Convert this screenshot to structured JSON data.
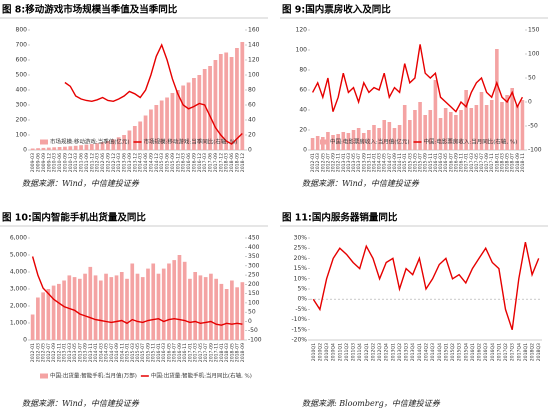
{
  "chart_data": [
    {
      "type": "bar",
      "title": "图 8:移动游戏市场规模当季值及当季同比",
      "source": "数据来源：Wind，中信建投证券",
      "legend": "lower center",
      "categories": [
        "2009-03",
        "2009-06",
        "2009-09",
        "2009-12",
        "2010-03",
        "2010-06",
        "2010-09",
        "2010-12",
        "2011-03",
        "2011-06",
        "2011-09",
        "2011-12",
        "2012-03",
        "2012-06",
        "2012-09",
        "2012-12",
        "2013-03",
        "2013-06",
        "2013-09",
        "2013-12",
        "2014-03",
        "2014-06",
        "2014-09",
        "2014-12",
        "2015-03",
        "2015-06",
        "2015-09",
        "2015-12",
        "2016-03",
        "2016-06",
        "2016-09",
        "2016-12",
        "2017-03",
        "2017-06",
        "2017-09",
        "2017-12",
        "2018-03",
        "2018-06",
        "2018-09",
        "2018-12"
      ],
      "ylim": [
        0,
        800
      ],
      "yticks": [
        0,
        100,
        200,
        300,
        400,
        500,
        600,
        700,
        800
      ],
      "y2lim": [
        0,
        160
      ],
      "y2ticks": [
        0,
        20,
        40,
        60,
        80,
        100,
        120,
        140,
        160
      ],
      "series": [
        {
          "name": "市场规模:移动游戏:当季值(亿元)",
          "type": "bar",
          "color": "#f4a3a3",
          "values": [
            10,
            12,
            14,
            16,
            18,
            20,
            22,
            25,
            28,
            32,
            36,
            40,
            45,
            52,
            60,
            70,
            85,
            100,
            130,
            160,
            190,
            230,
            270,
            300,
            330,
            350,
            380,
            400,
            430,
            450,
            480,
            500,
            540,
            560,
            600,
            640,
            650,
            620,
            680,
            720
          ]
        },
        {
          "name": "市场规模:移动游戏:当季同比(右轴, %)",
          "type": "line",
          "axis": "y2",
          "color": "#e60000",
          "values": [
            null,
            null,
            null,
            null,
            null,
            null,
            90,
            85,
            72,
            68,
            66,
            65,
            67,
            70,
            66,
            65,
            68,
            72,
            78,
            75,
            70,
            80,
            100,
            125,
            140,
            120,
            95,
            75,
            60,
            55,
            58,
            62,
            60,
            45,
            30,
            20,
            12,
            8,
            15,
            22
          ]
        }
      ]
    },
    {
      "type": "bar",
      "title": "图 9:国内票房收入及同比",
      "source": "数据来源：Wind，中信建投证券",
      "legend": "lower center",
      "categories": [
        "2012-01",
        "2012-03",
        "2012-05",
        "2012-07",
        "2012-09",
        "2012-11",
        "2013-01",
        "2013-03",
        "2013-05",
        "2013-07",
        "2013-09",
        "2013-11",
        "2014-01",
        "2014-03",
        "2014-05",
        "2014-07",
        "2014-09",
        "2014-11",
        "2015-01",
        "2015-03",
        "2015-05",
        "2015-07",
        "2015-09",
        "2015-11",
        "2016-01",
        "2016-03",
        "2016-05",
        "2016-07",
        "2016-09",
        "2016-11",
        "2017-01",
        "2017-03",
        "2017-05",
        "2017-07",
        "2017-09",
        "2017-11",
        "2018-01",
        "2018-03",
        "2018-05",
        "2018-07",
        "2018-09",
        "2018-11"
      ],
      "ylim": [
        0,
        120
      ],
      "yticks": [
        0,
        20,
        40,
        60,
        80,
        100,
        120
      ],
      "y2lim": [
        -100,
        150
      ],
      "y2ticks": [
        -100,
        -50,
        0,
        50,
        100,
        150
      ],
      "series": [
        {
          "name": "中国:电影票房收入:当月值(亿元)",
          "type": "bar",
          "color": "#f4a3a3",
          "values": [
            12,
            14,
            13,
            18,
            15,
            16,
            18,
            17,
            20,
            22,
            17,
            20,
            25,
            22,
            30,
            28,
            22,
            25,
            45,
            30,
            40,
            48,
            35,
            40,
            70,
            32,
            42,
            38,
            35,
            40,
            60,
            42,
            45,
            58,
            45,
            50,
            101,
            48,
            55,
            62,
            45,
            50
          ]
        },
        {
          "name": "中国:电影票房收入:当月同比(右轴, %)",
          "type": "line",
          "axis": "y2",
          "color": "#e60000",
          "values": [
            20,
            40,
            10,
            50,
            -20,
            10,
            60,
            20,
            30,
            0,
            40,
            20,
            30,
            25,
            60,
            10,
            30,
            20,
            80,
            40,
            50,
            120,
            60,
            50,
            60,
            10,
            0,
            -10,
            -20,
            0,
            -10,
            20,
            40,
            50,
            20,
            10,
            40,
            10,
            0,
            20,
            -10,
            10
          ]
        }
      ]
    },
    {
      "type": "bar",
      "title": "图 10:国内智能手机出货量及同比",
      "source": "数据来源：Wind，中信建投证券",
      "legend": "below",
      "categories": [
        "2012-01",
        "2012-03",
        "2012-05",
        "2012-07",
        "2012-09",
        "2012-11",
        "2013-01",
        "2013-03",
        "2013-05",
        "2013-07",
        "2013-09",
        "2013-11",
        "2014-01",
        "2014-03",
        "2014-05",
        "2014-07",
        "2014-09",
        "2014-11",
        "2015-01",
        "2015-03",
        "2015-05",
        "2015-07",
        "2015-09",
        "2015-11",
        "2016-01",
        "2016-03",
        "2016-05",
        "2016-07",
        "2016-09",
        "2016-11",
        "2017-01",
        "2017-03",
        "2017-05",
        "2017-07",
        "2017-09",
        "2017-11",
        "2018-01",
        "2018-03",
        "2018-05",
        "2018-07",
        "2018-09"
      ],
      "ylim": [
        0,
        6000
      ],
      "yticks": [
        0,
        {
          "value": 1000,
          "label": "1,000"
        },
        {
          "value": 2000,
          "label": "2,000"
        },
        {
          "value": 3000,
          "label": "3,000"
        },
        {
          "value": 4000,
          "label": "4,000"
        },
        {
          "value": 5000,
          "label": "5,000"
        },
        {
          "value": 6000,
          "label": "6,000"
        }
      ],
      "y2lim": [
        -100,
        450
      ],
      "y2ticks": [
        -100,
        -50,
        0,
        50,
        100,
        150,
        200,
        250,
        300,
        350,
        400,
        450
      ],
      "series": [
        {
          "name": "中国:出货量:智能手机:当月值(万部)",
          "type": "bar",
          "color": "#f4a3a3",
          "values": [
            1500,
            2500,
            2800,
            3000,
            3200,
            3300,
            3500,
            3800,
            3700,
            3600,
            3900,
            4300,
            3800,
            3500,
            3900,
            3700,
            3800,
            4000,
            3600,
            4500,
            3900,
            3700,
            4200,
            4500,
            3900,
            4200,
            4500,
            4700,
            5000,
            4600,
            3600,
            4000,
            3800,
            3700,
            3900,
            3600,
            3300,
            3000,
            3500,
            3100,
            3400
          ]
        },
        {
          "name": "中国:出货量:智能手机:当月同比(右轴, %)",
          "type": "line",
          "axis": "y2",
          "color": "#e60000",
          "values": [
            350,
            250,
            180,
            150,
            120,
            100,
            80,
            70,
            60,
            40,
            30,
            20,
            10,
            5,
            0,
            -5,
            0,
            5,
            -10,
            10,
            0,
            -5,
            5,
            10,
            15,
            0,
            10,
            15,
            10,
            5,
            -5,
            0,
            -10,
            -5,
            0,
            -15,
            -20,
            -10,
            -15,
            -10,
            -15
          ]
        }
      ]
    },
    {
      "type": "line",
      "title": "图 11:国内服务器销量同比",
      "source": "数据来源: Bloomberg，中信建投证券",
      "reference_line": 0,
      "categories": [
        "2010Q1",
        "2010Q2",
        "2010Q3",
        "2010Q4",
        "2011Q1",
        "2011Q2",
        "2011Q3",
        "2011Q4",
        "2012Q1",
        "2012Q2",
        "2012Q3",
        "2012Q4",
        "2013Q1",
        "2013Q2",
        "2013Q3",
        "2013Q4",
        "2014Q1",
        "2014Q2",
        "2014Q3",
        "2014Q4",
        "2015Q1",
        "2015Q2",
        "2015Q3",
        "2015Q4",
        "2016Q1",
        "2016Q2",
        "2016Q3",
        "2016Q4",
        "2017Q1",
        "2017Q2",
        "2017Q3",
        "2017Q4",
        "2018Q1",
        "2018Q2",
        "2018Q3"
      ],
      "ylim": [
        -20,
        30
      ],
      "yticks": [
        {
          "value": -20,
          "label": "-20%"
        },
        {
          "value": -15,
          "label": "-15%"
        },
        {
          "value": -10,
          "label": "-10%"
        },
        {
          "value": -5,
          "label": "-5%"
        },
        {
          "value": 0,
          "label": "0%"
        },
        {
          "value": 5,
          "label": "5%"
        },
        {
          "value": 10,
          "label": "10%"
        },
        {
          "value": 15,
          "label": "15%"
        },
        {
          "value": 20,
          "label": "20%"
        },
        {
          "value": 25,
          "label": "25%"
        },
        {
          "value": 30,
          "label": "30%"
        }
      ],
      "series": [
        {
          "type": "line",
          "color": "#e60000",
          "values": [
            0,
            -5,
            10,
            20,
            25,
            22,
            18,
            15,
            26,
            20,
            10,
            18,
            20,
            5,
            15,
            12,
            20,
            5,
            10,
            17,
            20,
            10,
            12,
            8,
            15,
            20,
            25,
            18,
            15,
            -5,
            -15,
            10,
            28,
            12,
            20
          ]
        }
      ]
    }
  ]
}
